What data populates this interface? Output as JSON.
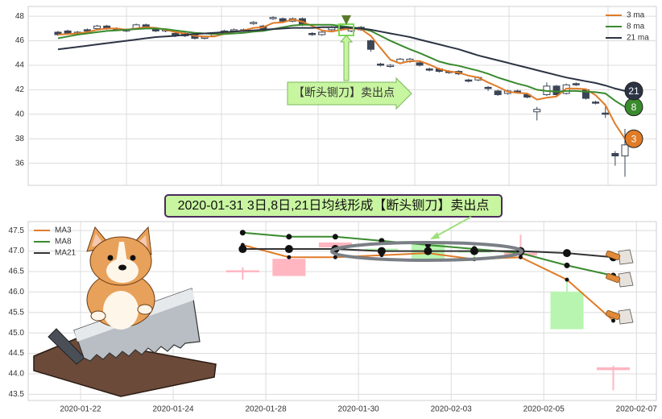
{
  "chart_data": [
    {
      "type": "candlestick",
      "categories": [
        null,
        null,
        null,
        null,
        null,
        null,
        null,
        null,
        null,
        null,
        null,
        null,
        null,
        null,
        null,
        null,
        null,
        null,
        null,
        null,
        null,
        null,
        null,
        null,
        null,
        null,
        null,
        null,
        null,
        null,
        null,
        null,
        null,
        null,
        null,
        null,
        null,
        null,
        null,
        null,
        null,
        null,
        null,
        null,
        null,
        null,
        null,
        null,
        null,
        null,
        null,
        null,
        null,
        null,
        null,
        null,
        null,
        null,
        null
      ],
      "open": [
        46.7,
        46.8,
        46.6,
        46.9,
        47.0,
        47.2,
        47.0,
        46.8,
        47.0,
        47.3,
        47.0,
        46.8,
        46.6,
        46.4,
        46.5,
        46.2,
        46.4,
        46.6,
        46.8,
        46.9,
        47.4,
        47.2,
        47.8,
        47.8,
        47.6,
        47.8,
        46.6,
        46.5,
        46.9,
        47.1,
        46.8,
        47.1,
        46.0,
        44.1,
        43.9,
        44.2,
        44.3,
        44.2,
        43.7,
        43.7,
        43.5,
        43.5,
        42.8,
        42.8,
        42.2,
        41.9,
        41.7,
        41.9,
        41.6,
        40.2,
        41.6,
        42.3,
        41.7,
        42.5,
        42.0,
        41.0,
        40.1,
        36.8,
        36.6
      ],
      "high": [
        46.8,
        46.9,
        46.8,
        47.0,
        47.3,
        47.3,
        47.1,
        47.0,
        47.4,
        47.4,
        47.1,
        46.9,
        46.7,
        46.7,
        46.6,
        46.4,
        46.7,
        46.9,
        47.0,
        47.0,
        47.6,
        47.3,
        48.0,
        47.9,
        47.9,
        47.9,
        46.7,
        46.8,
        47.2,
        47.2,
        47.1,
        47.2,
        46.1,
        44.2,
        44.1,
        44.6,
        44.6,
        44.3,
        43.8,
        43.8,
        43.6,
        43.6,
        42.9,
        43.1,
        42.3,
        42.0,
        42.0,
        42.0,
        41.7,
        40.6,
        42.6,
        42.4,
        42.5,
        42.6,
        42.1,
        41.1,
        40.6,
        37.0,
        38.8
      ],
      "low": [
        46.4,
        46.5,
        46.5,
        46.7,
        46.9,
        46.9,
        46.8,
        46.7,
        46.9,
        47.0,
        46.7,
        46.7,
        46.3,
        46.3,
        46.1,
        46.1,
        46.3,
        46.5,
        46.7,
        46.7,
        47.3,
        46.9,
        47.7,
        47.5,
        47.5,
        47.2,
        46.4,
        46.4,
        46.8,
        46.8,
        46.7,
        46.8,
        45.1,
        43.9,
        43.8,
        44.1,
        44.2,
        43.9,
        43.5,
        43.4,
        43.3,
        43.2,
        42.6,
        42.7,
        41.9,
        41.5,
        41.6,
        41.7,
        41.3,
        39.5,
        41.5,
        41.5,
        41.6,
        42.3,
        41.2,
        40.8,
        39.7,
        35.8,
        34.9
      ],
      "close": [
        46.5,
        46.6,
        46.7,
        46.8,
        47.2,
        47.0,
        46.9,
        46.9,
        47.3,
        47.1,
        46.8,
        46.9,
        46.4,
        46.6,
        46.2,
        46.3,
        46.6,
        46.8,
        46.9,
        46.8,
        47.5,
        47.0,
        47.9,
        47.6,
        47.8,
        47.3,
        46.5,
        46.7,
        47.1,
        46.9,
        47.0,
        46.9,
        45.3,
        44.0,
        44.0,
        44.5,
        44.5,
        44.0,
        43.6,
        43.5,
        43.4,
        43.3,
        42.7,
        43.0,
        42.1,
        41.6,
        41.9,
        41.8,
        41.4,
        40.4,
        42.3,
        41.6,
        42.4,
        42.4,
        41.3,
        40.9,
        40.0,
        36.6,
        37.5
      ],
      "up_color": "#ffffff",
      "down_color": "#3b4556",
      "edge_color": "#3b4556",
      "series": [
        {
          "name": "3 ma",
          "color": "#e07b28",
          "end_label": "3",
          "values": [
            46.5,
            46.55,
            46.6,
            46.7,
            46.9,
            47.0,
            47.0,
            46.9,
            47.0,
            47.1,
            47.05,
            46.9,
            46.7,
            46.6,
            46.4,
            46.35,
            46.35,
            46.55,
            46.75,
            46.85,
            47.05,
            47.1,
            47.45,
            47.5,
            47.75,
            47.55,
            47.2,
            46.85,
            46.75,
            46.9,
            47.0,
            46.95,
            46.4,
            45.4,
            44.45,
            44.15,
            44.35,
            44.35,
            44.05,
            43.7,
            43.5,
            43.4,
            43.15,
            43.0,
            42.6,
            42.25,
            41.85,
            41.75,
            41.7,
            41.2,
            41.35,
            41.45,
            42.1,
            42.1,
            42.05,
            41.55,
            40.75,
            39.2,
            38.0
          ]
        },
        {
          "name": "8 ma",
          "color": "#3a8a2e",
          "end_label": "8",
          "values": [
            46.2,
            46.35,
            46.5,
            46.6,
            46.7,
            46.8,
            46.85,
            46.9,
            46.95,
            47.0,
            47.0,
            46.95,
            46.85,
            46.75,
            46.65,
            46.6,
            46.55,
            46.55,
            46.6,
            46.65,
            46.75,
            46.8,
            46.95,
            47.1,
            47.25,
            47.3,
            47.3,
            47.3,
            47.3,
            47.2,
            47.1,
            47.0,
            46.8,
            46.4,
            46.0,
            45.65,
            45.3,
            45.0,
            44.65,
            44.3,
            44.1,
            43.95,
            43.75,
            43.55,
            43.3,
            43.0,
            42.75,
            42.5,
            42.3,
            42.0,
            41.9,
            41.85,
            41.9,
            41.9,
            41.85,
            41.8,
            41.7,
            41.1,
            40.6
          ]
        },
        {
          "name": "21 ma",
          "color": "#2c3444",
          "end_label": "21",
          "values": [
            45.3,
            45.4,
            45.5,
            45.6,
            45.7,
            45.8,
            45.9,
            46.0,
            46.1,
            46.2,
            46.3,
            46.35,
            46.4,
            46.5,
            46.55,
            46.6,
            46.65,
            46.7,
            46.75,
            46.8,
            46.85,
            46.9,
            46.95,
            47.0,
            47.05,
            47.05,
            47.05,
            47.1,
            47.1,
            47.1,
            47.05,
            47.0,
            46.9,
            46.75,
            46.6,
            46.45,
            46.3,
            46.1,
            45.9,
            45.7,
            45.5,
            45.3,
            45.05,
            44.8,
            44.6,
            44.4,
            44.2,
            44.0,
            43.8,
            43.6,
            43.4,
            43.2,
            43.0,
            42.85,
            42.7,
            42.55,
            42.35,
            42.1,
            41.9
          ]
        }
      ],
      "ylim": [
        34.2,
        48.8
      ],
      "yticks": [
        36,
        38,
        40,
        42,
        44,
        46,
        48
      ],
      "grid": true,
      "legend": "upper right",
      "annotation": "【断头铡刀】卖出点"
    },
    {
      "type": "candlestick",
      "title": "2020-01-31 3日,8日,21日均线形成【断头铡刀】卖出点",
      "x": [
        3.5,
        4.5,
        5.5,
        6.5,
        7.5,
        8.5,
        9.5,
        10.5,
        11.5
      ],
      "open": [
        46.5,
        46.4,
        47.1,
        47.05,
        47.2,
        47.0,
        46.9,
        46.0,
        44.1
      ],
      "high": [
        46.6,
        46.8,
        47.2,
        47.1,
        47.25,
        47.2,
        47.4,
        46.3,
        44.2
      ],
      "low": [
        46.3,
        46.4,
        46.8,
        46.9,
        46.75,
        46.8,
        46.9,
        45.1,
        43.6
      ],
      "close": [
        46.52,
        46.8,
        47.2,
        47.0,
        46.8,
        46.98,
        46.95,
        45.1,
        44.15
      ],
      "up_color": "#ffb6c1",
      "down_color": "#b8f5b0",
      "edge_color": null,
      "series": [
        {
          "name": "MA3",
          "color": "#e07b28",
          "markersize": 2.5,
          "values": [
            47.15,
            46.85,
            46.85,
            46.9,
            46.95,
            46.8,
            46.85,
            46.3,
            45.3
          ]
        },
        {
          "name": "MA8",
          "color": "#3a8a2e",
          "markersize": 3.5,
          "values": [
            47.45,
            47.35,
            47.35,
            47.25,
            47.15,
            47.05,
            46.95,
            46.65,
            46.4
          ]
        },
        {
          "name": "MA21",
          "color": "#333333",
          "markersize": 5,
          "values": [
            47.05,
            47.05,
            47.05,
            47.0,
            47.0,
            47.0,
            47.0,
            46.95,
            46.85
          ]
        }
      ],
      "xlim": [
        -1.13,
        12.43
      ],
      "xticks": [
        {
          "value": 0,
          "label": "2020-01-22"
        },
        {
          "value": 2,
          "label": "2020-01-24"
        },
        {
          "value": 4,
          "label": "2020-01-28"
        },
        {
          "value": 6,
          "label": "2020-01-30"
        },
        {
          "value": 8,
          "label": "2020-02-03"
        },
        {
          "value": 10,
          "label": "2020-02-05"
        },
        {
          "value": 12,
          "label": "2020-02-07"
        }
      ],
      "ylim": [
        43.35,
        47.72
      ],
      "yticks": [
        43.5,
        {
          "value": 44,
          "label": "44.0"
        },
        44.5,
        {
          "value": 45,
          "label": "45.0"
        },
        45.5,
        {
          "value": 46,
          "label": "46.0"
        },
        46.5,
        {
          "value": 47,
          "label": "47.0"
        },
        47.5
      ],
      "grid": true,
      "legend": "upper left"
    }
  ]
}
